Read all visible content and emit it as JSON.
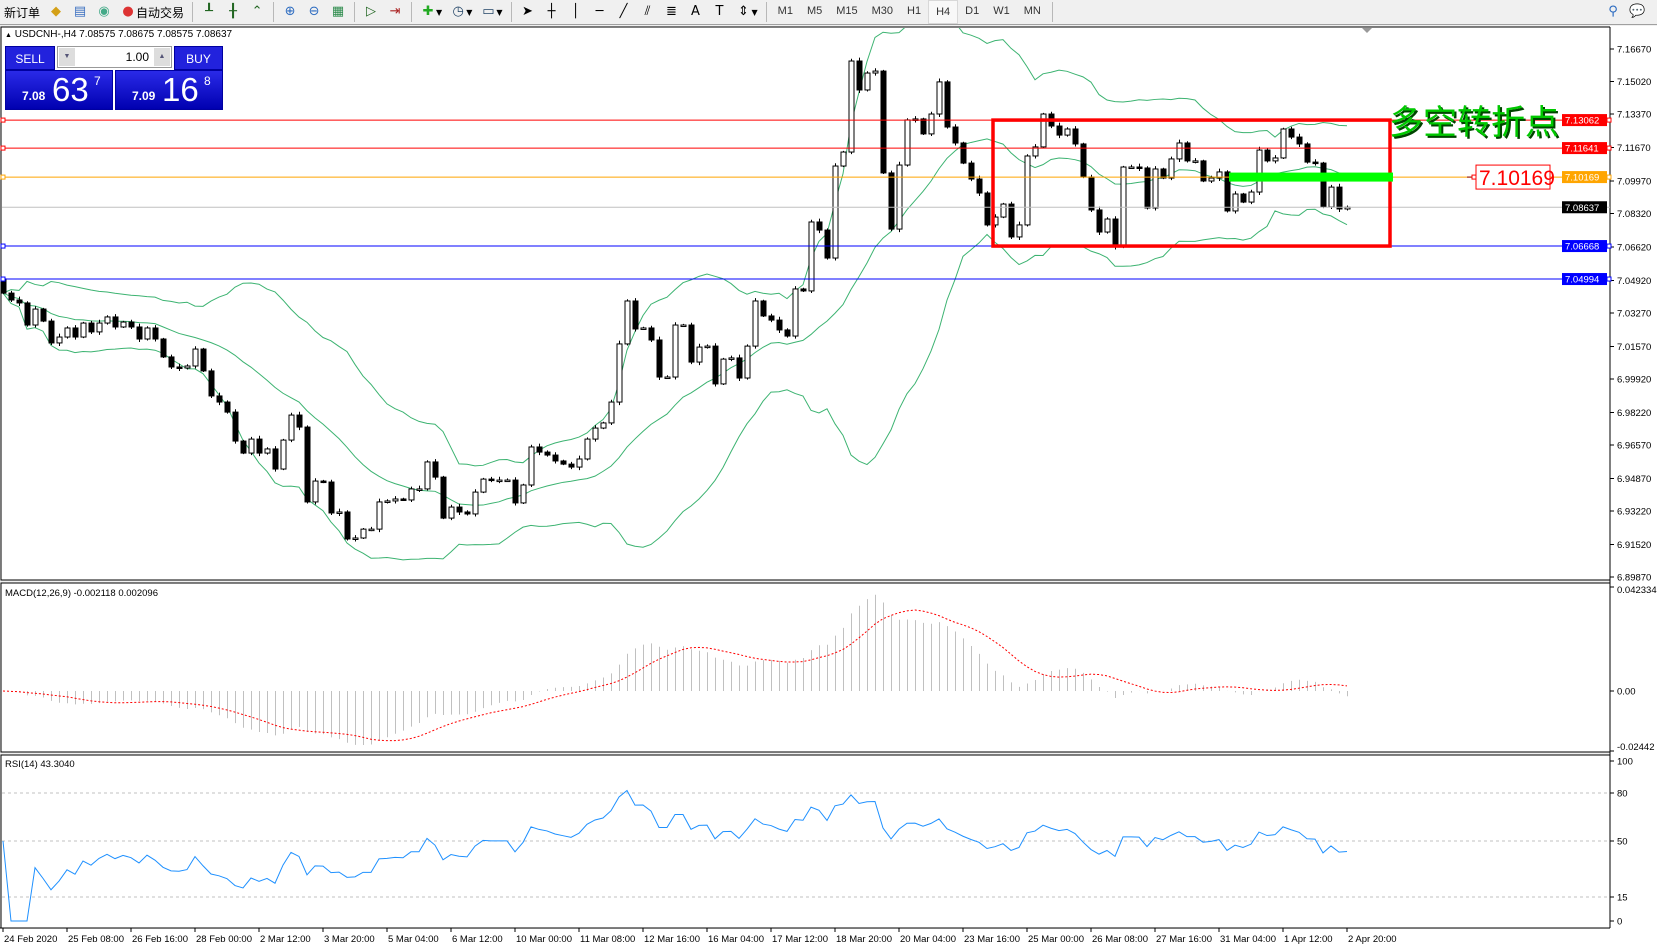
{
  "toolbar": {
    "new_order": "新订单",
    "auto_trading": "自动交易",
    "icons": [
      "new-order-icon",
      "metaeditor-icon",
      "market-watch-icon",
      "signals-icon",
      "auto-trading-icon",
      "bar-chart-icon",
      "candlestick-icon",
      "line-chart-icon",
      "zoom-in-icon",
      "zoom-out-icon",
      "tile-windows-icon",
      "autoscroll-icon",
      "chart-shift-icon",
      "indicators-icon",
      "periods-icon",
      "templates-icon",
      "cursor-icon",
      "crosshair-icon",
      "vertical-line-icon",
      "horizontal-line-icon",
      "trendline-icon",
      "equidistant-channel-icon",
      "fibonacci-icon",
      "text-icon",
      "text-label-icon",
      "arrows-icon",
      "search-icon",
      "chat-icon"
    ],
    "timeframes": [
      "M1",
      "M5",
      "M15",
      "M30",
      "H1",
      "H4",
      "D1",
      "W1",
      "MN"
    ],
    "active_timeframe": "H4"
  },
  "header": {
    "symbol_line": "USDCNH-,H4  7.08575 7.08675 7.08575 7.08637"
  },
  "trade_panel": {
    "sell_label": "SELL",
    "buy_label": "BUY",
    "lot": "1.00",
    "sell_price": {
      "prefix": "7.08",
      "big": "63",
      "sup": "7"
    },
    "buy_price": {
      "prefix": "7.09",
      "big": "16",
      "sup": "8"
    }
  },
  "annotation": {
    "text": "多空转折点",
    "price_label": "7.10169",
    "text_color": "#00c800",
    "box_color": "#ff0000",
    "highlight_color": "#00ff00"
  },
  "chart_data": {
    "type": "candlestick",
    "symbol": "USDCNH-",
    "timeframe": "H4",
    "price_range": [
      6.8987,
      7.1667
    ],
    "price_ticks": [
      "7.16670",
      "7.15020",
      "7.13370",
      "7.11670",
      "7.09970",
      "7.08320",
      "7.06620",
      "7.04920",
      "7.03270",
      "7.01570",
      "6.99920",
      "6.98220",
      "6.96570",
      "6.94870",
      "6.93220",
      "6.91520",
      "6.89870"
    ],
    "time_labels": [
      "24 Feb 2020",
      "25 Feb 08:00",
      "26 Feb 16:00",
      "28 Feb 00:00",
      "2 Mar 12:00",
      "3 Mar 20:00",
      "5 Mar 04:00",
      "6 Mar 12:00",
      "10 Mar 00:00",
      "11 Mar 08:00",
      "12 Mar 16:00",
      "16 Mar 04:00",
      "17 Mar 12:00",
      "18 Mar 20:00",
      "20 Mar 04:00",
      "23 Mar 16:00",
      "25 Mar 00:00",
      "26 Mar 08:00",
      "27 Mar 16:00",
      "31 Mar 04:00",
      "1 Apr 12:00",
      "2 Apr 20:00"
    ],
    "first_open": 7.05,
    "closes": [
      7.0428,
      7.0393,
      7.0378,
      7.0266,
      7.0347,
      7.0286,
      7.0175,
      7.0205,
      7.0251,
      7.0205,
      7.0276,
      7.0231,
      7.0276,
      7.0307,
      7.0256,
      7.0281,
      7.0256,
      7.0195,
      7.0251,
      7.0195,
      7.0104,
      7.0053,
      7.0048,
      7.0058,
      7.0144,
      7.0033,
      6.9906,
      6.9875,
      6.9824,
      6.9677,
      6.9616,
      6.9687,
      6.9616,
      6.9637,
      6.9535,
      6.9682,
      6.9809,
      6.9748,
      6.9368,
      6.9474,
      6.9469,
      6.9312,
      6.9317,
      6.918,
      6.9185,
      6.923,
      6.923,
      6.9368,
      6.9373,
      6.9383,
      6.9378,
      6.9434,
      6.9434,
      6.9571,
      6.9494,
      6.9286,
      6.9342,
      6.9317,
      6.9307,
      6.9418,
      6.9484,
      6.9479,
      6.9479,
      6.9479,
      6.9363,
      6.9454,
      6.9647,
      6.9621,
      6.9606,
      6.9576,
      6.956,
      6.9545,
      6.9586,
      6.9687,
      6.9743,
      6.9769,
      6.9875,
      7.017,
      7.0388,
      7.0246,
      7.0251,
      7.019,
      7.0002,
      7.0002,
      7.0266,
      7.0266,
      7.0078,
      7.0154,
      7.0159,
      6.9967,
      7.0093,
      7.0099,
      6.9997,
      7.0159,
      7.0388,
      7.0312,
      7.0291,
      7.0241,
      7.021,
      7.0449,
      7.0439,
      7.0789,
      7.0748,
      7.0606,
      7.1073,
      7.1144,
      7.1606,
      7.1459,
      7.1545,
      7.1555,
      7.1038,
      7.0753,
      7.1078,
      7.1307,
      7.1312,
      7.1236,
      7.1337,
      7.15,
      7.1271,
      7.119,
      7.1088,
      7.1007,
      7.0936,
      7.0774,
      7.0814,
      7.088,
      7.0713,
      7.0774,
      7.1124,
      7.117,
      7.1337,
      7.1276,
      7.123,
      7.1261,
      7.1185,
      7.1017,
      7.085,
      7.0738,
      7.0804,
      7.0662,
      7.1068,
      7.1068,
      7.1063,
      7.086,
      7.1058,
      7.1012,
      7.1109,
      7.119,
      7.1099,
      7.1099,
      7.0997,
      7.1012,
      7.1043,
      7.0845,
      7.0931,
      7.089,
      7.0941,
      7.1154,
      7.1099,
      7.1114,
      7.1261,
      7.122,
      7.1185,
      7.1093,
      7.1088,
      7.0865,
      7.0966,
      7.0855,
      7.08637
    ],
    "current_price": {
      "value": 7.08637,
      "label": "7.08637",
      "color": "#000000"
    },
    "horizontal_lines": [
      {
        "value": 7.13062,
        "label": "7.13062",
        "color": "#ff0000"
      },
      {
        "value": 7.11641,
        "label": "7.11641",
        "color": "#ff0000"
      },
      {
        "value": 7.10169,
        "label": "7.10169",
        "color": "#ffa500"
      },
      {
        "value": 7.06668,
        "label": "7.06668",
        "color": "#0000ff"
      },
      {
        "value": 7.04994,
        "label": "7.04994",
        "color": "#0000ff"
      }
    ],
    "rectangle": {
      "price_top": 7.13062,
      "price_bottom": 7.06668,
      "color": "#ff0000"
    },
    "bollinger": {
      "period": 20,
      "deviations": 2,
      "color": "#3cb371"
    },
    "macd": {
      "label": "MACD(12,26,9) -0.002118 0.002096",
      "fast": 12,
      "slow": 26,
      "signal": 9,
      "range": [
        -0.02442,
        0.042334
      ],
      "ticks": [
        "0.042334",
        "0.00",
        "-0.02442"
      ],
      "hist_color": "#c0c0c0",
      "signal_color": "#ff0000"
    },
    "rsi": {
      "label": "RSI(14) 43.3040",
      "period": 14,
      "range": [
        0,
        100
      ],
      "ticks": [
        "100",
        "80",
        "50",
        "15",
        "0"
      ],
      "levels": [
        80,
        50,
        15
      ],
      "color": "#1e90ff"
    }
  }
}
